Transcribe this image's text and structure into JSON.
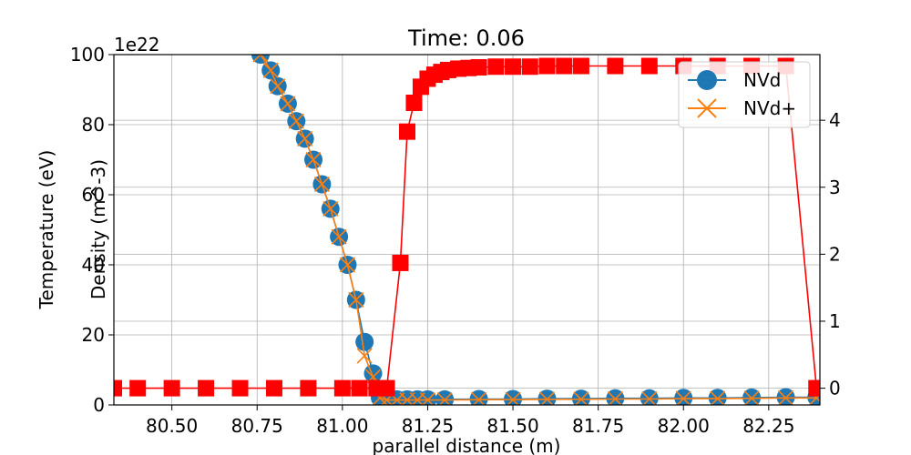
{
  "chart_data": {
    "type": "line",
    "title": "Time: 0.06",
    "xlabel": "parallel distance (m)",
    "ylabel_left": "Temperature (eV)",
    "ylabel_right": "Density (m^-3)",
    "offset_text": "1e22",
    "xlim": [
      80.33,
      82.4
    ],
    "ylim_left": [
      0,
      100
    ],
    "ylim_right": [
      -0.25,
      4.98
    ],
    "x_ticks": [
      80.5,
      80.75,
      81.0,
      81.25,
      81.5,
      81.75,
      82.0,
      82.25
    ],
    "x_tick_labels": [
      "80.50",
      "80.75",
      "81.00",
      "81.25",
      "81.50",
      "81.75",
      "82.00",
      "82.25"
    ],
    "y_left_ticks": [
      0,
      20,
      40,
      60,
      80,
      100
    ],
    "y_left_tick_labels": [
      "0",
      "20",
      "40",
      "60",
      "80",
      "100"
    ],
    "y_right_ticks": [
      0,
      1,
      2,
      3,
      4
    ],
    "y_right_tick_labels": [
      "0",
      "1",
      "2",
      "3",
      "4"
    ],
    "grid": true,
    "legend": {
      "position": "top-right"
    },
    "series": [
      {
        "name": "NVd",
        "axis": "left",
        "color": "#1f77b4",
        "marker": "circle",
        "x": [
          80.76,
          80.79,
          80.81,
          80.84,
          80.865,
          80.89,
          80.915,
          80.94,
          80.965,
          80.99,
          81.015,
          81.04,
          81.065,
          81.09,
          81.11,
          81.13,
          81.16,
          81.19,
          81.22,
          81.25,
          81.3,
          81.4,
          81.5,
          81.6,
          81.7,
          81.8,
          81.9,
          82.0,
          82.1,
          82.2,
          82.3,
          82.39
        ],
        "y": [
          100,
          95.5,
          91,
          86,
          81,
          76,
          70,
          63,
          56,
          48,
          40,
          30,
          18,
          9,
          2,
          1.6,
          1.6,
          1.6,
          1.6,
          1.6,
          1.6,
          1.7,
          1.7,
          1.8,
          1.8,
          1.9,
          1.9,
          2.0,
          2.0,
          2.1,
          2.2,
          2.2
        ]
      },
      {
        "name": "NVd+",
        "axis": "left",
        "color": "#ff7f0e",
        "marker": "x",
        "x": [
          80.76,
          80.79,
          80.81,
          80.84,
          80.865,
          80.89,
          80.915,
          80.94,
          80.965,
          80.99,
          81.015,
          81.04,
          81.065,
          81.09,
          81.11,
          81.13,
          81.16,
          81.19,
          81.22,
          81.25,
          81.3,
          81.4,
          81.5,
          81.6,
          81.7,
          81.8,
          81.9,
          82.0,
          82.1,
          82.2,
          82.3,
          82.39
        ],
        "y": [
          100,
          95.5,
          91,
          86,
          81,
          76,
          70,
          63,
          56,
          48,
          40,
          30,
          14,
          8,
          2,
          1.4,
          1.4,
          1.4,
          1.4,
          1.4,
          1.4,
          1.5,
          1.5,
          1.6,
          1.6,
          1.7,
          1.7,
          1.8,
          1.8,
          1.9,
          2.0,
          2.0
        ]
      },
      {
        "axis": "right",
        "color": "#ff0000",
        "marker": "square",
        "x": [
          80.33,
          80.4,
          80.5,
          80.6,
          80.7,
          80.8,
          80.9,
          81.0,
          81.05,
          81.1,
          81.13,
          81.17,
          81.19,
          81.21,
          81.23,
          81.25,
          81.27,
          81.29,
          81.31,
          81.34,
          81.37,
          81.4,
          81.45,
          81.5,
          81.55,
          81.6,
          81.65,
          81.7,
          81.8,
          81.9,
          82.0,
          82.1,
          82.2,
          82.3,
          82.39,
          82.4
        ],
        "y": [
          0.0,
          0.0,
          0.0,
          0.0,
          0.0,
          0.0,
          0.0,
          0.0,
          0.0,
          0.0,
          0.0,
          1.87,
          3.83,
          4.26,
          4.5,
          4.62,
          4.68,
          4.72,
          4.75,
          4.77,
          4.78,
          4.79,
          4.8,
          4.8,
          4.8,
          4.81,
          4.81,
          4.81,
          4.81,
          4.81,
          4.81,
          4.81,
          4.81,
          4.81,
          0.0,
          0.0
        ]
      }
    ]
  }
}
